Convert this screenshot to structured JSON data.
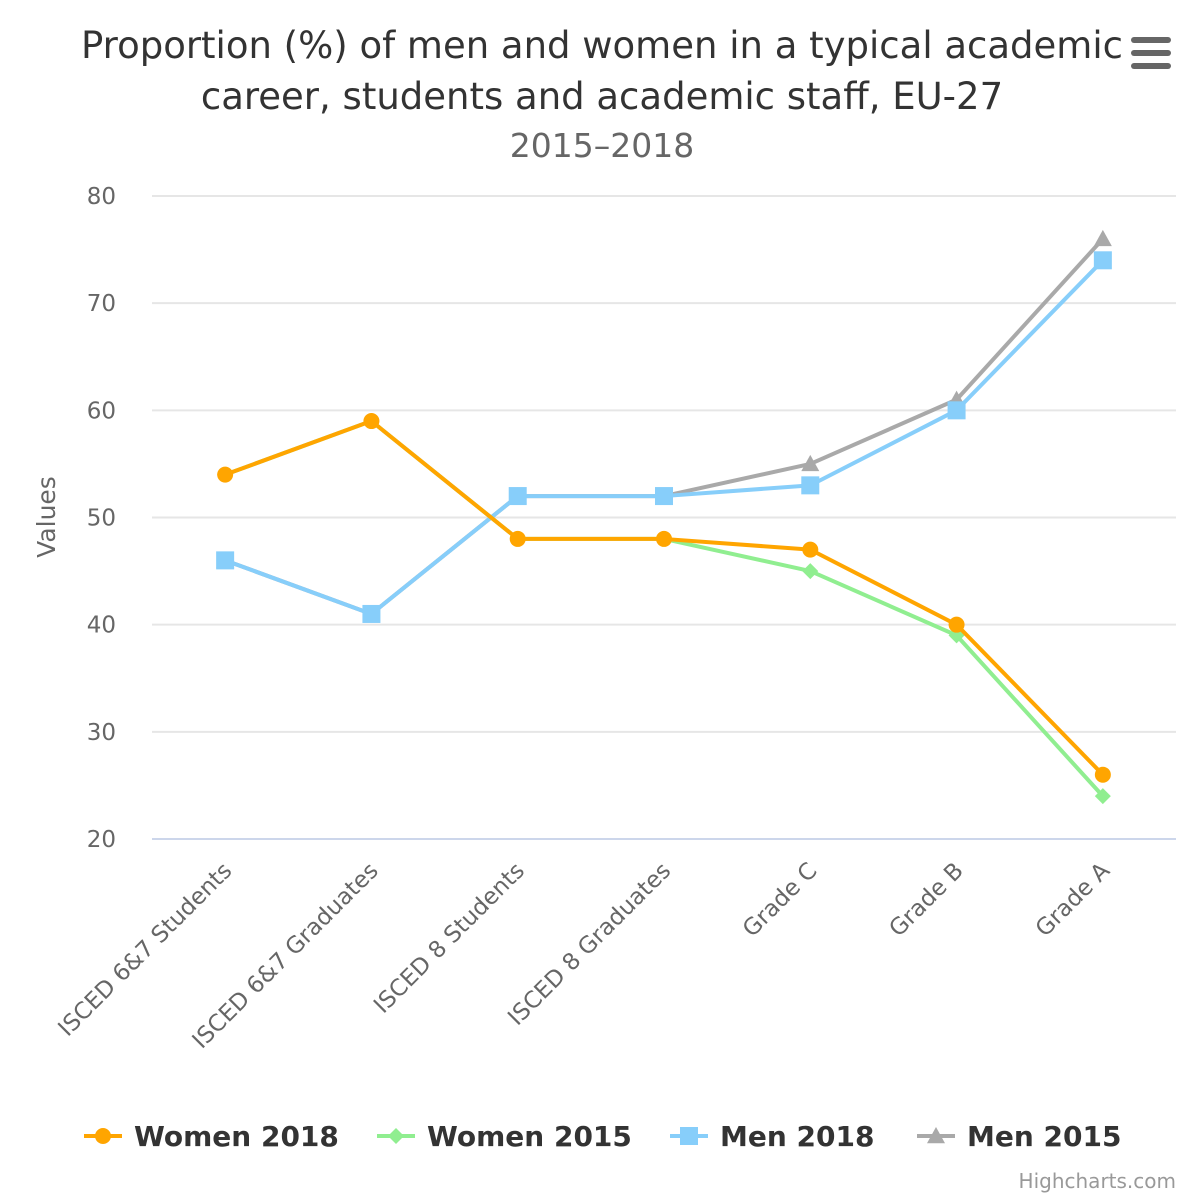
{
  "menu": {
    "icon": "hamburger-menu-icon"
  },
  "credit": "Highcharts.com",
  "chart_data": {
    "type": "line",
    "title": "Proportion (%) of men and women in a typical academic career, students and academic staff, EU-27",
    "title_lines": [
      "Proportion (%) of men and women in a typical academic",
      "career, students and academic staff, EU-27"
    ],
    "subtitle": "2015–2018",
    "xlabel": "",
    "ylabel": "Values",
    "ylim": [
      20,
      80
    ],
    "yticks": [
      20,
      30,
      40,
      50,
      60,
      70,
      80
    ],
    "grid": true,
    "legend_position": "bottom",
    "categories": [
      "ISCED 6&7 Students",
      "ISCED 6&7 Graduates",
      "ISCED 8 Students",
      "ISCED 8 Graduates",
      "Grade C",
      "Grade B",
      "Grade A"
    ],
    "series": [
      {
        "name": "Women 2018",
        "color": "#ffa500",
        "marker": "circle",
        "values": [
          54,
          59,
          48,
          48,
          47,
          40,
          26
        ]
      },
      {
        "name": "Women 2015",
        "color": "#90ee90",
        "marker": "diamond",
        "values": [
          54,
          59,
          48,
          48,
          45,
          39,
          24
        ]
      },
      {
        "name": "Men 2018",
        "color": "#87cefa",
        "marker": "square",
        "values": [
          46,
          41,
          52,
          52,
          53,
          60,
          74
        ]
      },
      {
        "name": "Men 2015",
        "color": "#a9a9a9",
        "marker": "triangle",
        "values": [
          46,
          41,
          52,
          52,
          55,
          61,
          76
        ]
      }
    ]
  }
}
